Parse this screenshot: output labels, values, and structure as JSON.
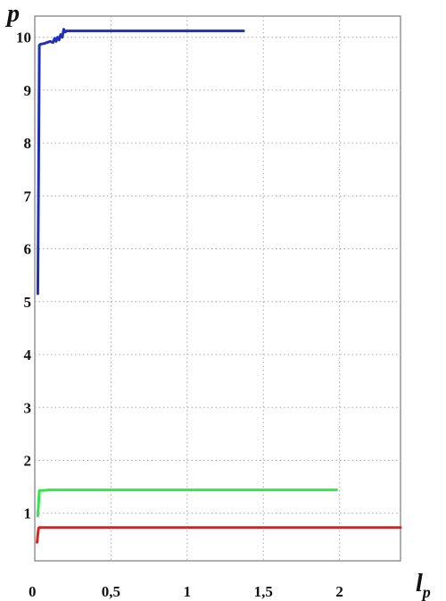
{
  "chart_data": {
    "type": "line",
    "xlabel_main": "l",
    "xlabel_sub": "p",
    "ylabel": "p",
    "xlim": [
      0,
      2.4
    ],
    "ylim": [
      0.1,
      10.4
    ],
    "grid": true,
    "x_ticks": [
      {
        "value": 0,
        "label": "0"
      },
      {
        "value": 0.5,
        "label": "0,5"
      },
      {
        "value": 1,
        "label": "1"
      },
      {
        "value": 1.5,
        "label": "1,5"
      },
      {
        "value": 2,
        "label": "2"
      }
    ],
    "y_ticks": [
      {
        "value": 1,
        "label": "1"
      },
      {
        "value": 2,
        "label": "2"
      },
      {
        "value": 3,
        "label": "3"
      },
      {
        "value": 4,
        "label": "4"
      },
      {
        "value": 5,
        "label": "5"
      },
      {
        "value": 6,
        "label": "6"
      },
      {
        "value": 7,
        "label": "7"
      },
      {
        "value": 8,
        "label": "8"
      },
      {
        "value": 9,
        "label": "9"
      },
      {
        "value": 10,
        "label": "10"
      }
    ],
    "series": [
      {
        "color": "#1f2fb8",
        "x": [
          0.02,
          0.025,
          0.03,
          0.04,
          0.06,
          0.08,
          0.1,
          0.12,
          0.13,
          0.14,
          0.15,
          0.16,
          0.17,
          0.18,
          0.19,
          0.2,
          0.21,
          1.0,
          1.37
        ],
        "y": [
          5.15,
          7.5,
          9.85,
          9.87,
          9.88,
          9.9,
          9.92,
          9.9,
          9.98,
          9.92,
          10.0,
          9.95,
          10.05,
          10.0,
          10.15,
          10.1,
          10.12,
          10.12,
          10.12
        ]
      },
      {
        "color": "#33e64a",
        "x": [
          0.02,
          0.025,
          0.03,
          0.05,
          0.1,
          0.5,
          1.0,
          1.5,
          1.98
        ],
        "y": [
          0.95,
          1.2,
          1.43,
          1.43,
          1.44,
          1.44,
          1.44,
          1.44,
          1.44
        ]
      },
      {
        "color": "#d72222",
        "x": [
          0.015,
          0.02,
          0.025,
          0.03,
          0.05,
          0.1,
          0.5,
          1.0,
          1.5,
          2.0,
          2.4
        ],
        "y": [
          0.45,
          0.6,
          0.72,
          0.73,
          0.73,
          0.73,
          0.73,
          0.73,
          0.73,
          0.73,
          0.73
        ]
      }
    ]
  }
}
